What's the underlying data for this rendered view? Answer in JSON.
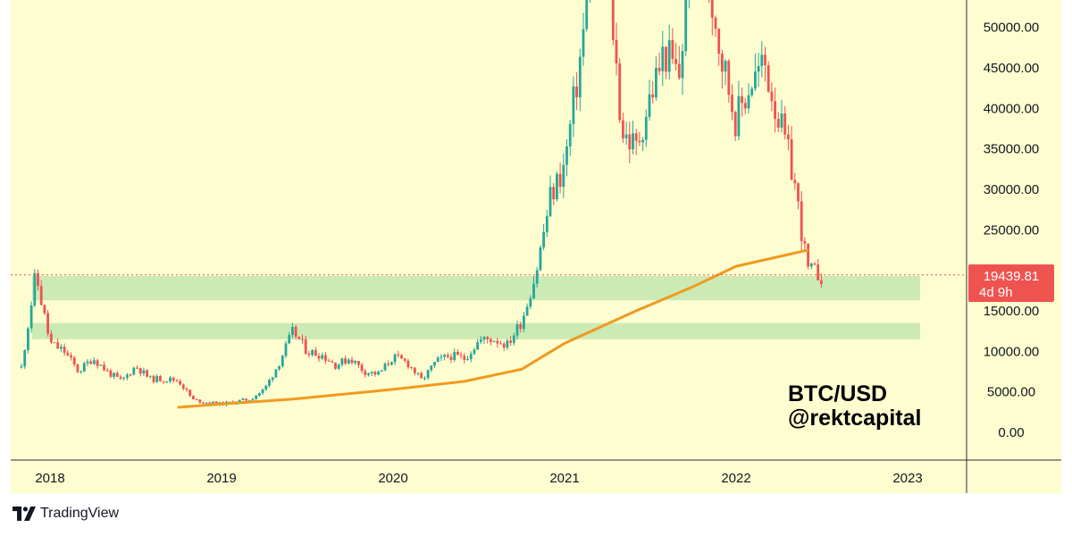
{
  "colors": {
    "background": "#fefdd0",
    "bull": "#26a69a",
    "bear": "#ef5350",
    "ma_line": "#f09a1f",
    "support_zone": "#c6e8b0",
    "price_tag": "#ef5350"
  },
  "brand": {
    "name": "TradingView",
    "icon": "tradingview-logo-icon"
  },
  "chart_data": {
    "type": "candlestick",
    "x_axis": {
      "labels": [
        "2018",
        "2019",
        "2020",
        "2021",
        "2022",
        "2023"
      ]
    },
    "y_axis": {
      "labels": [
        "50000.00",
        "45000.00",
        "40000.00",
        "35000.00",
        "30000.00",
        "25000.00",
        "15000.00",
        "10000.00",
        "5000.00",
        "0.00"
      ],
      "range": [
        -1500,
        55000
      ]
    },
    "annotations": {
      "line1": "BTC/USD",
      "line2": "@rektcapital"
    },
    "last_price": {
      "value": "19439.81",
      "countdown": "4d 9h"
    },
    "support_zones": [
      {
        "low": 16300,
        "high": 19300
      },
      {
        "low": 11500,
        "high": 13500
      }
    ],
    "moving_average": {
      "points": [
        [
          "2018-10",
          3100
        ],
        [
          "2019-01",
          3500
        ],
        [
          "2019-06",
          4100
        ],
        [
          "2020-01",
          5300
        ],
        [
          "2020-06",
          6300
        ],
        [
          "2020-10",
          7800
        ],
        [
          "2021-01",
          11000
        ],
        [
          "2021-06",
          15000
        ],
        [
          "2021-10",
          18000
        ],
        [
          "2022-01",
          20500
        ],
        [
          "2022-06",
          22500
        ]
      ]
    },
    "weekly_closes": [
      [
        "2017-11",
        8000
      ],
      [
        "2017-12",
        19500
      ],
      [
        "2018-01",
        11000
      ],
      [
        "2018-02",
        10000
      ],
      [
        "2018-03",
        7500
      ],
      [
        "2018-04",
        9200
      ],
      [
        "2018-05",
        7500
      ],
      [
        "2018-06",
        6300
      ],
      [
        "2018-07",
        8200
      ],
      [
        "2018-08",
        6600
      ],
      [
        "2018-09",
        6600
      ],
      [
        "2018-10",
        6400
      ],
      [
        "2018-11",
        4000
      ],
      [
        "2018-12",
        3700
      ],
      [
        "2019-01",
        3500
      ],
      [
        "2019-02",
        3800
      ],
      [
        "2019-03",
        4100
      ],
      [
        "2019-04",
        5300
      ],
      [
        "2019-05",
        8500
      ],
      [
        "2019-06",
        12500
      ],
      [
        "2019-07",
        10000
      ],
      [
        "2019-08",
        9600
      ],
      [
        "2019-09",
        8300
      ],
      [
        "2019-10",
        9200
      ],
      [
        "2019-11",
        7500
      ],
      [
        "2019-12",
        7200
      ],
      [
        "2020-01",
        9300
      ],
      [
        "2020-02",
        8600
      ],
      [
        "2020-03",
        6400
      ],
      [
        "2020-04",
        8700
      ],
      [
        "2020-05",
        9500
      ],
      [
        "2020-06",
        9100
      ],
      [
        "2020-07",
        11300
      ],
      [
        "2020-08",
        11600
      ],
      [
        "2020-09",
        10800
      ],
      [
        "2020-10",
        13800
      ],
      [
        "2020-11",
        19700
      ],
      [
        "2020-12",
        29000
      ],
      [
        "2021-01",
        33000
      ],
      [
        "2021-02",
        45000
      ],
      [
        "2021-03",
        58800
      ],
      [
        "2021-04",
        57700
      ],
      [
        "2021-05",
        37300
      ],
      [
        "2021-06",
        35000
      ],
      [
        "2021-07",
        41500
      ],
      [
        "2021-08",
        47100
      ],
      [
        "2021-09",
        43800
      ],
      [
        "2021-10",
        61300
      ],
      [
        "2021-11",
        57000
      ],
      [
        "2021-12",
        46300
      ],
      [
        "2022-01",
        38500
      ],
      [
        "2022-02",
        43200
      ],
      [
        "2022-03",
        45500
      ],
      [
        "2022-04",
        38600
      ],
      [
        "2022-05",
        31800
      ],
      [
        "2022-06",
        20000
      ],
      [
        "2022-07",
        19400
      ]
    ]
  }
}
